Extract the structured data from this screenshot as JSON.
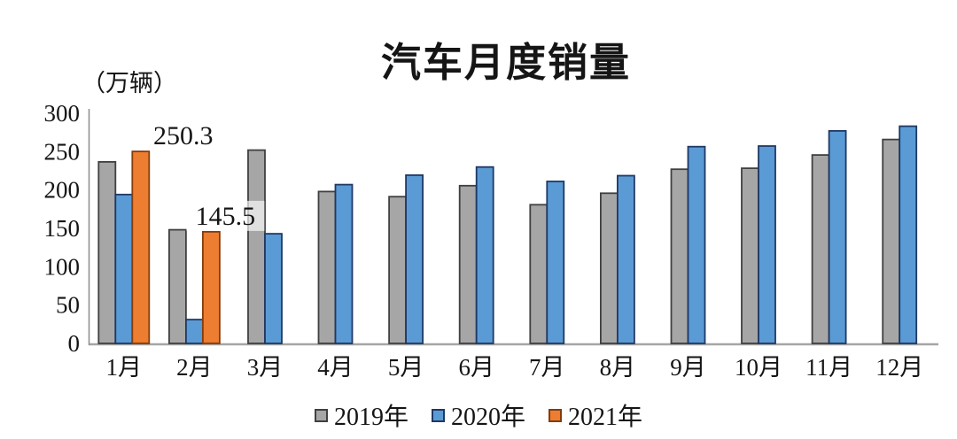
{
  "chart_data": {
    "type": "bar",
    "title": "汽车月度销量",
    "ylabel": "（万辆）",
    "categories": [
      "1月",
      "2月",
      "3月",
      "4月",
      "5月",
      "6月",
      "7月",
      "8月",
      "9月",
      "10月",
      "11月",
      "12月"
    ],
    "yticks": [
      "300",
      "250",
      "200",
      "150",
      "100",
      "50",
      "0"
    ],
    "ytick_values": [
      300,
      250,
      200,
      150,
      100,
      50,
      0
    ],
    "ylim": [
      0,
      300
    ],
    "grid": false,
    "legend_position": "bottom",
    "series": [
      {
        "name": "2019年",
        "color": "#a6a6a6",
        "border": "#404040",
        "values": [
          236.7,
          148.2,
          252.0,
          198.0,
          191.3,
          205.6,
          180.8,
          195.8,
          227.1,
          228.4,
          245.7,
          265.8
        ]
      },
      {
        "name": "2020年",
        "color": "#5b9bd5",
        "border": "#1f3864",
        "values": [
          194.1,
          31.0,
          143.0,
          207.0,
          219.4,
          230.0,
          211.2,
          218.6,
          256.5,
          257.3,
          277.0,
          283.1
        ]
      },
      {
        "name": "2021年",
        "color": "#ed7d31",
        "border": "#843c0c",
        "values": [
          250.3,
          145.5,
          null,
          null,
          null,
          null,
          null,
          null,
          null,
          null,
          null,
          null
        ]
      }
    ],
    "annotations": [
      {
        "text": "250.3",
        "series": "2021年",
        "month": "1月"
      },
      {
        "text": "145.5",
        "series": "2021年",
        "month": "2月"
      }
    ],
    "axis_color": "#8c8c8c",
    "baseline_color": "#a6a6a6"
  }
}
